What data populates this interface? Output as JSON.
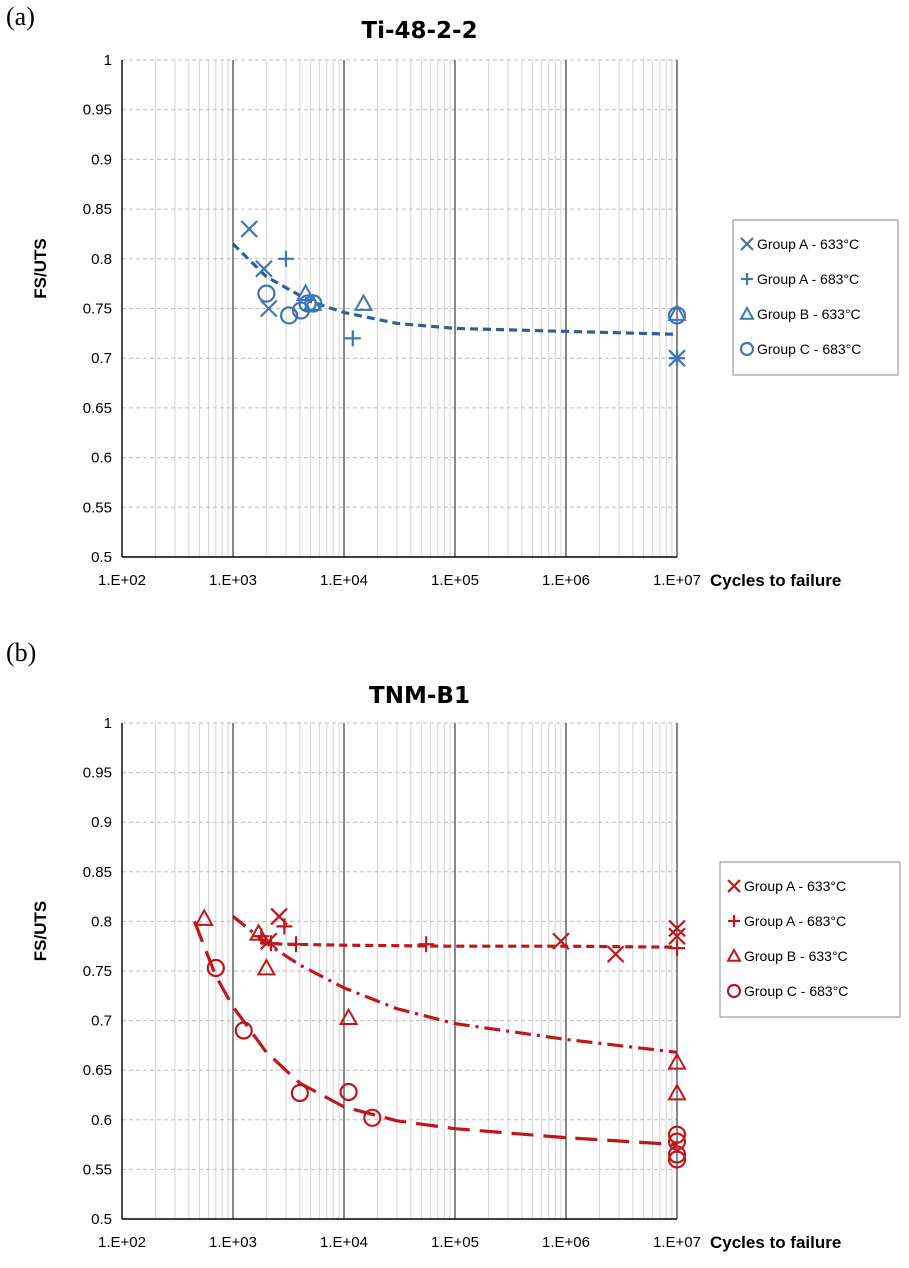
{
  "panels": {
    "a_label": "(a)",
    "b_label": "(b)"
  },
  "colors": {
    "blue": "#3f74b6",
    "red": "#c0161b",
    "curve_blue": "#2f5f98",
    "curve_red": "#c0161b"
  },
  "chart_data": [
    {
      "type": "scatter",
      "title": "Ti-48-2-2",
      "xlabel": "Cycles to failure",
      "ylabel": "FS/UTS",
      "xscale": "log",
      "xlim": [
        100,
        10000000
      ],
      "ylim": [
        0.5,
        1
      ],
      "xticks": [
        "1.E+02",
        "1.E+03",
        "1.E+04",
        "1.E+05",
        "1.E+06",
        "1.E+07"
      ],
      "yticks": [
        "0.5",
        "0.55",
        "0.6",
        "0.65",
        "0.7",
        "0.75",
        "0.8",
        "0.85",
        "0.9",
        "0.95",
        "1"
      ],
      "grid": true,
      "legend_position": "right",
      "color": "#3f74b6",
      "series": [
        {
          "name": "Group A - 633°C",
          "marker": "x",
          "x": [
            1400,
            1900,
            2100,
            10000000
          ],
          "y": [
            0.83,
            0.79,
            0.75,
            0.7
          ]
        },
        {
          "name": "Group A - 683°C",
          "marker": "plus",
          "x": [
            3000,
            12000,
            10000000
          ],
          "y": [
            0.8,
            0.72,
            0.7
          ]
        },
        {
          "name": "Group B - 633°C",
          "marker": "triangle",
          "x": [
            4500,
            5200,
            15000,
            10000000
          ],
          "y": [
            0.765,
            0.755,
            0.755,
            0.745
          ]
        },
        {
          "name": "Group C - 683°C",
          "marker": "circle",
          "x": [
            2000,
            3200,
            4100,
            4700,
            5300,
            10000000
          ],
          "y": [
            0.765,
            0.743,
            0.748,
            0.755,
            0.755,
            0.743
          ]
        }
      ],
      "trendlines": [
        {
          "style": "dash",
          "x": [
            1000,
            2000,
            5000,
            10000,
            30000,
            100000,
            1000000,
            10000000
          ],
          "y": [
            0.815,
            0.782,
            0.757,
            0.746,
            0.735,
            0.73,
            0.727,
            0.724
          ]
        }
      ]
    },
    {
      "type": "scatter",
      "title": "TNM-B1",
      "xlabel": "Cycles to failure",
      "ylabel": "FS/UTS",
      "xscale": "log",
      "xlim": [
        100,
        10000000
      ],
      "ylim": [
        0.5,
        1
      ],
      "xticks": [
        "1.E+02",
        "1.E+03",
        "1.E+04",
        "1.E+05",
        "1.E+06",
        "1.E+07"
      ],
      "yticks": [
        "0.5",
        "0.55",
        "0.6",
        "0.65",
        "0.7",
        "0.75",
        "0.8",
        "0.85",
        "0.9",
        "0.95",
        "1"
      ],
      "grid": true,
      "legend_position": "right",
      "color": "#c0161b",
      "series": [
        {
          "name": "Group A - 633°C",
          "marker": "x",
          "x": [
            2100,
            2600,
            900000,
            2800000,
            10000000,
            10000000
          ],
          "y": [
            0.78,
            0.805,
            0.78,
            0.767,
            0.793,
            0.785
          ]
        },
        {
          "name": "Group A - 683°C",
          "marker": "plus",
          "x": [
            1800,
            2200,
            2900,
            3700,
            55000,
            10000000
          ],
          "y": [
            0.785,
            0.778,
            0.795,
            0.777,
            0.777,
            0.773
          ]
        },
        {
          "name": "Group B - 633°C",
          "marker": "triangle",
          "x": [
            550,
            1700,
            2000,
            11000,
            10000000,
            10000000
          ],
          "y": [
            0.803,
            0.788,
            0.753,
            0.703,
            0.658,
            0.627
          ]
        },
        {
          "name": "Group C - 683°C",
          "marker": "circle",
          "x": [
            700,
            1250,
            4000,
            11000,
            18000,
            10000000,
            10000000,
            10000000,
            10000000
          ],
          "y": [
            0.753,
            0.69,
            0.627,
            0.628,
            0.602,
            0.585,
            0.578,
            0.565,
            0.56
          ]
        }
      ],
      "trendlines": [
        {
          "style": "dash",
          "x": [
            1800,
            3000,
            10000,
            100000,
            1000000,
            10000000
          ],
          "y": [
            0.778,
            0.777,
            0.776,
            0.775,
            0.775,
            0.774
          ]
        },
        {
          "style": "dashdot",
          "x": [
            1000,
            2000,
            4000,
            10000,
            30000,
            100000,
            1000000,
            10000000
          ],
          "y": [
            0.805,
            0.778,
            0.756,
            0.733,
            0.712,
            0.697,
            0.681,
            0.668
          ]
        },
        {
          "style": "longdash",
          "x": [
            450,
            700,
            1000,
            2000,
            4000,
            10000,
            30000,
            100000,
            1000000,
            10000000
          ],
          "y": [
            0.8,
            0.745,
            0.714,
            0.668,
            0.637,
            0.613,
            0.599,
            0.591,
            0.582,
            0.575
          ]
        }
      ]
    }
  ]
}
